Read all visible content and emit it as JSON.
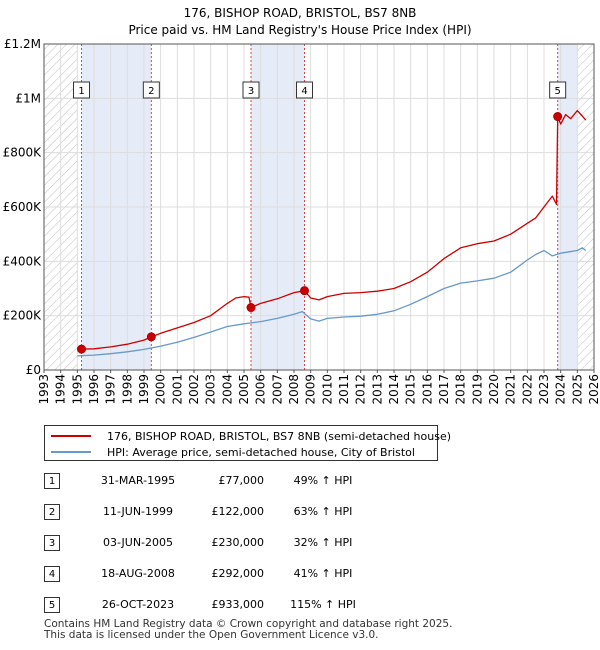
{
  "chart_data": {
    "type": "line",
    "title": "176, BISHOP ROAD, BRISTOL, BS7 8NB",
    "subtitle": "Price paid vs. HM Land Registry's House Price Index (HPI)",
    "xlim": [
      1993,
      2026
    ],
    "ylim": [
      0,
      1200000
    ],
    "ytick_values": [
      0,
      200000,
      400000,
      600000,
      800000,
      1000000,
      1200000
    ],
    "ytick_labels": [
      "£0",
      "£200K",
      "£400K",
      "£600K",
      "£800K",
      "£1M",
      "£1.2M"
    ],
    "xtick_labels": [
      "1993",
      "1994",
      "1995",
      "1996",
      "1997",
      "1998",
      "1999",
      "2000",
      "2001",
      "2002",
      "2003",
      "2004",
      "2005",
      "2006",
      "2007",
      "2008",
      "2009",
      "2010",
      "2011",
      "2012",
      "2013",
      "2014",
      "2015",
      "2016",
      "2017",
      "2018",
      "2019",
      "2020",
      "2021",
      "2022",
      "2023",
      "2024",
      "2025",
      "2026"
    ],
    "hatch_before": 1995.0,
    "hatch_after": 2025.0,
    "shaded_spans": [
      [
        1995.25,
        1999.44
      ],
      [
        2005.42,
        2008.63
      ],
      [
        2023.82,
        2025.0
      ]
    ],
    "series": [
      {
        "name": "176, BISHOP ROAD, BRISTOL, BS7 8NB (semi-detached house)",
        "color": "#cc0000",
        "x": [
          1995.25,
          1996.0,
          1997.0,
          1998.0,
          1999.0,
          1999.44,
          2000.0,
          2001.0,
          2002.0,
          2003.0,
          2004.0,
          2004.5,
          2005.0,
          2005.3,
          2005.42,
          2006.0,
          2007.0,
          2008.0,
          2008.63,
          2009.0,
          2009.5,
          2010.0,
          2011.0,
          2012.0,
          2013.0,
          2014.0,
          2015.0,
          2016.0,
          2017.0,
          2018.0,
          2019.0,
          2020.0,
          2021.0,
          2022.0,
          2022.5,
          2023.0,
          2023.5,
          2023.75,
          2023.82,
          2024.0,
          2024.3,
          2024.6,
          2025.0,
          2025.3,
          2025.5
        ],
        "values": [
          77000,
          78000,
          85000,
          95000,
          110000,
          122000,
          135000,
          155000,
          175000,
          200000,
          245000,
          265000,
          270000,
          268000,
          230000,
          245000,
          262000,
          285000,
          292000,
          265000,
          258000,
          270000,
          282000,
          285000,
          290000,
          300000,
          325000,
          360000,
          410000,
          450000,
          465000,
          475000,
          500000,
          540000,
          560000,
          600000,
          640000,
          610000,
          933000,
          905000,
          940000,
          925000,
          955000,
          935000,
          920000
        ]
      },
      {
        "name": "HPI: Average price, semi-detached house, City of Bristol",
        "color": "#6699cc",
        "x": [
          1995.0,
          1996.0,
          1997.0,
          1998.0,
          1999.0,
          2000.0,
          2001.0,
          2002.0,
          2003.0,
          2004.0,
          2005.0,
          2006.0,
          2007.0,
          2008.0,
          2008.5,
          2009.0,
          2009.5,
          2010.0,
          2011.0,
          2012.0,
          2013.0,
          2014.0,
          2015.0,
          2016.0,
          2017.0,
          2018.0,
          2019.0,
          2020.0,
          2021.0,
          2022.0,
          2022.5,
          2023.0,
          2023.5,
          2024.0,
          2024.5,
          2025.0,
          2025.3,
          2025.5
        ],
        "values": [
          52000,
          55000,
          60000,
          67000,
          76000,
          88000,
          102000,
          120000,
          140000,
          160000,
          170000,
          178000,
          190000,
          205000,
          215000,
          188000,
          180000,
          190000,
          195000,
          198000,
          205000,
          218000,
          242000,
          270000,
          300000,
          320000,
          328000,
          338000,
          360000,
          405000,
          425000,
          440000,
          420000,
          430000,
          435000,
          440000,
          450000,
          440000
        ]
      }
    ],
    "transactions": [
      {
        "num": "1",
        "x": 1995.25,
        "price": 77000,
        "date": "31-MAR-1995",
        "price_label": "£77,000",
        "hpi_label": "49% ↑ HPI"
      },
      {
        "num": "2",
        "x": 1999.44,
        "price": 122000,
        "date": "11-JUN-1999",
        "price_label": "£122,000",
        "hpi_label": "63% ↑ HPI"
      },
      {
        "num": "3",
        "x": 2005.42,
        "price": 230000,
        "date": "03-JUN-2005",
        "price_label": "£230,000",
        "hpi_label": "32% ↑ HPI"
      },
      {
        "num": "4",
        "x": 2008.63,
        "price": 292000,
        "date": "18-AUG-2008",
        "price_label": "£292,000",
        "hpi_label": "41% ↑ HPI"
      },
      {
        "num": "5",
        "x": 2023.82,
        "price": 933000,
        "date": "26-OCT-2023",
        "price_label": "£933,000",
        "hpi_label": "115% ↑ HPI"
      }
    ]
  },
  "legend": {
    "property_label": "176, BISHOP ROAD, BRISTOL, BS7 8NB (semi-detached house)",
    "hpi_label": "HPI: Average price, semi-detached house, City of Bristol",
    "property_color": "#cc0000",
    "hpi_color": "#6699cc"
  },
  "footer": {
    "line1": "Contains HM Land Registry data © Crown copyright and database right 2025.",
    "line2": "This data is licensed under the Open Government Licence v3.0."
  }
}
